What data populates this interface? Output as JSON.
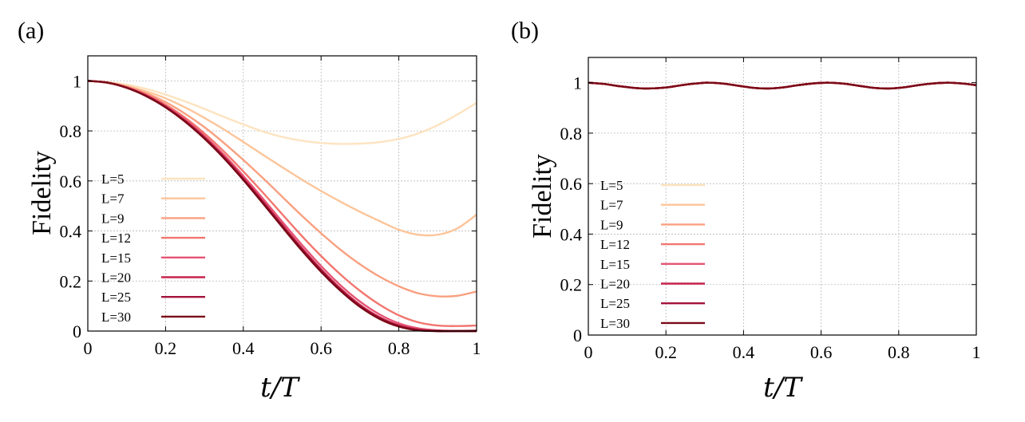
{
  "chart_data": [
    {
      "panel": "(a)",
      "type": "line",
      "xlabel": "t/T",
      "ylabel": "Fidelity",
      "xlim": [
        0,
        1
      ],
      "ylim": [
        0,
        1.1
      ],
      "xticks": [
        "0",
        "0.2",
        "0.4",
        "0.6",
        "0.8",
        "1"
      ],
      "yticks": [
        "0",
        "0.2",
        "0.4",
        "0.6",
        "0.8",
        "1"
      ],
      "grid": true,
      "legend_position": "center-left",
      "x": [
        0,
        0.05,
        0.1,
        0.15,
        0.2,
        0.25,
        0.3,
        0.35,
        0.4,
        0.45,
        0.5,
        0.55,
        0.6,
        0.65,
        0.7,
        0.75,
        0.8,
        0.85,
        0.9,
        0.95,
        1.0
      ],
      "series": [
        {
          "name": "L=5",
          "color": "#fde3c0",
          "values": [
            1.0,
            0.995,
            0.985,
            0.968,
            0.945,
            0.918,
            0.888,
            0.856,
            0.826,
            0.798,
            0.776,
            0.761,
            0.752,
            0.748,
            0.749,
            0.755,
            0.768,
            0.79,
            0.823,
            0.865,
            0.912
          ]
        },
        {
          "name": "L=7",
          "color": "#fcc59a",
          "values": [
            1.0,
            0.994,
            0.98,
            0.958,
            0.93,
            0.894,
            0.852,
            0.806,
            0.756,
            0.705,
            0.655,
            0.606,
            0.56,
            0.517,
            0.477,
            0.44,
            0.405,
            0.385,
            0.385,
            0.41,
            0.465
          ]
        },
        {
          "name": "L=9",
          "color": "#f9a080",
          "values": [
            1.0,
            0.993,
            0.977,
            0.951,
            0.915,
            0.869,
            0.815,
            0.752,
            0.684,
            0.612,
            0.537,
            0.462,
            0.391,
            0.325,
            0.267,
            0.218,
            0.179,
            0.151,
            0.139,
            0.141,
            0.158
          ]
        },
        {
          "name": "L=12",
          "color": "#f2766f",
          "values": [
            1.0,
            0.993,
            0.975,
            0.946,
            0.905,
            0.853,
            0.79,
            0.718,
            0.638,
            0.554,
            0.467,
            0.381,
            0.3,
            0.226,
            0.161,
            0.106,
            0.063,
            0.035,
            0.022,
            0.02,
            0.022
          ]
        },
        {
          "name": "L=15",
          "color": "#e55473",
          "values": [
            1.0,
            0.993,
            0.974,
            0.943,
            0.9,
            0.846,
            0.78,
            0.705,
            0.62,
            0.53,
            0.437,
            0.346,
            0.26,
            0.183,
            0.118,
            0.067,
            0.031,
            0.011,
            0.003,
            0.001,
            0.002
          ]
        },
        {
          "name": "L=20",
          "color": "#c8244f",
          "values": [
            1.0,
            0.993,
            0.973,
            0.941,
            0.897,
            0.841,
            0.774,
            0.697,
            0.611,
            0.519,
            0.425,
            0.333,
            0.247,
            0.17,
            0.105,
            0.056,
            0.023,
            0.006,
            0.0,
            0.0,
            0.0
          ]
        },
        {
          "name": "L=25",
          "color": "#a4133c",
          "values": [
            1.0,
            0.993,
            0.973,
            0.94,
            0.896,
            0.839,
            0.772,
            0.694,
            0.607,
            0.515,
            0.42,
            0.328,
            0.242,
            0.165,
            0.1,
            0.052,
            0.02,
            0.004,
            0.0,
            0.0,
            0.0
          ]
        },
        {
          "name": "L=30",
          "color": "#7a0a17",
          "values": [
            1.0,
            0.993,
            0.972,
            0.939,
            0.894,
            0.837,
            0.769,
            0.691,
            0.604,
            0.511,
            0.416,
            0.323,
            0.237,
            0.161,
            0.097,
            0.049,
            0.018,
            0.003,
            0.0,
            0.0,
            0.0
          ]
        }
      ]
    },
    {
      "panel": "(b)",
      "type": "line",
      "xlabel": "t/T",
      "ylabel": "Fidelity",
      "xlim": [
        0,
        1
      ],
      "ylim": [
        0,
        1.1
      ],
      "xticks": [
        "0",
        "0.2",
        "0.4",
        "0.6",
        "0.8",
        "1"
      ],
      "yticks": [
        "0",
        "0.2",
        "0.4",
        "0.6",
        "0.8",
        "1"
      ],
      "grid": true,
      "legend_position": "center-left",
      "x": [
        0,
        0.04,
        0.08,
        0.12,
        0.155,
        0.2,
        0.24,
        0.28,
        0.31,
        0.35,
        0.39,
        0.43,
        0.465,
        0.5,
        0.54,
        0.58,
        0.62,
        0.66,
        0.7,
        0.74,
        0.775,
        0.81,
        0.85,
        0.89,
        0.93,
        0.97,
        1.0
      ],
      "series": [
        {
          "name": "L=5",
          "color": "#fde3c0",
          "values": [
            1.0,
            0.995,
            0.986,
            0.979,
            0.977,
            0.981,
            0.99,
            0.997,
            1.0,
            0.996,
            0.987,
            0.979,
            0.977,
            0.981,
            0.99,
            0.997,
            1.0,
            0.996,
            0.987,
            0.979,
            0.977,
            0.981,
            0.99,
            0.997,
            1.0,
            0.996,
            0.99
          ]
        },
        {
          "name": "L=7",
          "color": "#fcc59a",
          "values": [
            1.0,
            0.995,
            0.986,
            0.979,
            0.977,
            0.981,
            0.99,
            0.997,
            1.0,
            0.996,
            0.987,
            0.979,
            0.977,
            0.981,
            0.99,
            0.997,
            1.0,
            0.996,
            0.987,
            0.979,
            0.977,
            0.981,
            0.99,
            0.997,
            1.0,
            0.996,
            0.99
          ]
        },
        {
          "name": "L=9",
          "color": "#f9a080",
          "values": [
            1.0,
            0.995,
            0.986,
            0.979,
            0.977,
            0.981,
            0.99,
            0.997,
            1.0,
            0.996,
            0.987,
            0.979,
            0.977,
            0.981,
            0.99,
            0.997,
            1.0,
            0.996,
            0.987,
            0.979,
            0.977,
            0.981,
            0.99,
            0.997,
            1.0,
            0.996,
            0.99
          ]
        },
        {
          "name": "L=12",
          "color": "#f2766f",
          "values": [
            1.0,
            0.995,
            0.986,
            0.979,
            0.977,
            0.981,
            0.99,
            0.997,
            1.0,
            0.996,
            0.987,
            0.979,
            0.977,
            0.981,
            0.99,
            0.997,
            1.0,
            0.996,
            0.987,
            0.979,
            0.977,
            0.981,
            0.99,
            0.997,
            1.0,
            0.996,
            0.99
          ]
        },
        {
          "name": "L=15",
          "color": "#e55473",
          "values": [
            1.0,
            0.995,
            0.986,
            0.979,
            0.977,
            0.981,
            0.99,
            0.997,
            1.0,
            0.996,
            0.987,
            0.979,
            0.977,
            0.981,
            0.99,
            0.997,
            1.0,
            0.996,
            0.987,
            0.979,
            0.977,
            0.981,
            0.99,
            0.997,
            1.0,
            0.996,
            0.99
          ]
        },
        {
          "name": "L=20",
          "color": "#c8244f",
          "values": [
            1.0,
            0.995,
            0.986,
            0.979,
            0.977,
            0.981,
            0.99,
            0.997,
            1.0,
            0.996,
            0.987,
            0.979,
            0.977,
            0.981,
            0.99,
            0.997,
            1.0,
            0.996,
            0.987,
            0.979,
            0.977,
            0.981,
            0.99,
            0.997,
            1.0,
            0.996,
            0.99
          ]
        },
        {
          "name": "L=25",
          "color": "#a4133c",
          "values": [
            1.0,
            0.995,
            0.986,
            0.979,
            0.977,
            0.981,
            0.99,
            0.997,
            1.0,
            0.996,
            0.987,
            0.979,
            0.977,
            0.981,
            0.99,
            0.997,
            1.0,
            0.996,
            0.987,
            0.979,
            0.977,
            0.981,
            0.99,
            0.997,
            1.0,
            0.996,
            0.99
          ]
        },
        {
          "name": "L=30",
          "color": "#7a0a17",
          "values": [
            1.0,
            0.995,
            0.986,
            0.979,
            0.977,
            0.981,
            0.99,
            0.997,
            1.0,
            0.996,
            0.987,
            0.979,
            0.977,
            0.981,
            0.99,
            0.997,
            1.0,
            0.996,
            0.987,
            0.979,
            0.977,
            0.981,
            0.99,
            0.997,
            1.0,
            0.996,
            0.99
          ]
        }
      ]
    }
  ]
}
